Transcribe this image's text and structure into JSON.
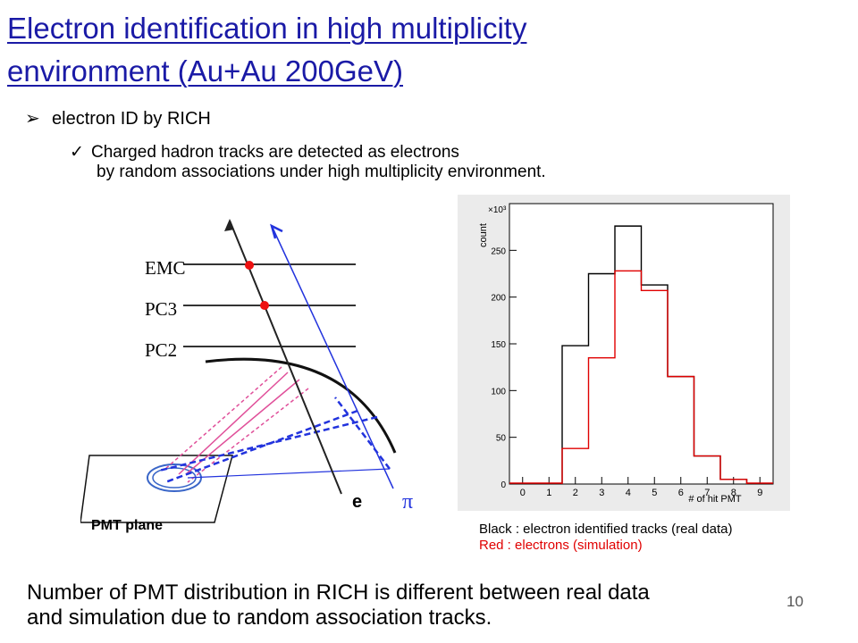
{
  "title": {
    "line1": "Electron identification in high multiplicity",
    "line2": "environment (Au+Au 200GeV)"
  },
  "bullets": {
    "level1_marker": "➢",
    "level1": "electron ID by RICH",
    "level2_marker": "✓",
    "level2_line1": "Charged hadron tracks are detected as electrons",
    "level2_line2": "by random associations under high multiplicity environment."
  },
  "diagram": {
    "labels": {
      "emc": "EMC",
      "pc3": "PC3",
      "pc2": "PC2",
      "pmt_plane": "PMT plane",
      "electron": "e",
      "pion": "π"
    },
    "colors": {
      "electron_track": "#222222",
      "pion_track": "#2233dd",
      "hit": "#ee1111",
      "cherenkov": "#e0509a"
    }
  },
  "chart_data": {
    "type": "histogram",
    "title": "",
    "y_exponent_label": "×10³",
    "ylabel": "count",
    "xlabel": "# of hit PMT",
    "x_ticks": [
      "0",
      "1",
      "2",
      "3",
      "4",
      "5",
      "6",
      "7",
      "8",
      "9"
    ],
    "y_ticks": [
      "0",
      "50",
      "100",
      "150",
      "200",
      "250"
    ],
    "xlim": [
      -0.5,
      9.5
    ],
    "ylim": [
      0,
      300
    ],
    "bin_edges": [
      1.5,
      2.5,
      3.5,
      4.5,
      5.5,
      6.5,
      7.5,
      8.5
    ],
    "series": [
      {
        "color": "#000000",
        "values": [
          148,
          225,
          276,
          213,
          115,
          30,
          5
        ]
      },
      {
        "color": "#e00000",
        "values": [
          38,
          135,
          228,
          207,
          115,
          30,
          5
        ]
      }
    ],
    "grid": false
  },
  "legend": {
    "black": "Black : electron identified tracks (real data)",
    "red": "Red :   electrons (simulation)"
  },
  "bottom_text": {
    "line1": "Number of PMT distribution in RICH is different between real data",
    "line2": "and simulation due to random association tracks."
  },
  "page_number": "10"
}
